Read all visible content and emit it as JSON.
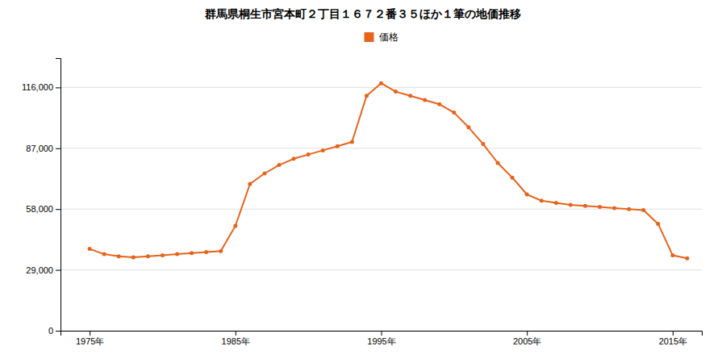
{
  "chart_data": {
    "type": "line",
    "title": "群馬県桐生市宮本町２丁目１６７２番３５ほか１筆の地価推移",
    "x": [
      1975,
      1976,
      1977,
      1978,
      1979,
      1980,
      1981,
      1982,
      1983,
      1984,
      1985,
      1986,
      1987,
      1988,
      1989,
      1990,
      1991,
      1992,
      1993,
      1994,
      1995,
      1996,
      1997,
      1998,
      1999,
      2000,
      2001,
      2002,
      2003,
      2004,
      2005,
      2006,
      2007,
      2008,
      2009,
      2010,
      2011,
      2012,
      2013,
      2014,
      2015,
      2016
    ],
    "series": [
      {
        "name": "価格",
        "color": "#E8631A",
        "marker": "circle",
        "values": [
          39000,
          36500,
          35500,
          35000,
          35500,
          36000,
          36500,
          37000,
          37500,
          38000,
          50000,
          70000,
          75000,
          79000,
          82000,
          84000,
          86000,
          88000,
          90000,
          112000,
          118000,
          114000,
          112000,
          110000,
          108000,
          104000,
          97000,
          89000,
          80000,
          73000,
          65000,
          62000,
          61000,
          60000,
          59500,
          59000,
          58500,
          58000,
          57500,
          51000,
          36000,
          34500
        ]
      }
    ],
    "xlim": [
      1973,
      2017
    ],
    "ylim": [
      0,
      130000
    ],
    "xticks": [
      {
        "value": 1975,
        "label": "1975年"
      },
      {
        "value": 1985,
        "label": "1985年"
      },
      {
        "value": 1995,
        "label": "1995年"
      },
      {
        "value": 2005,
        "label": "2005年"
      },
      {
        "value": 2015,
        "label": "2015年"
      }
    ],
    "yticks": [
      0,
      {
        "value": 29000,
        "label": "29,000"
      },
      {
        "value": 58000,
        "label": "58,000"
      },
      {
        "value": 87000,
        "label": "87,000"
      },
      {
        "value": 116000,
        "label": "116,000"
      }
    ],
    "grid": true,
    "legend": "top"
  }
}
